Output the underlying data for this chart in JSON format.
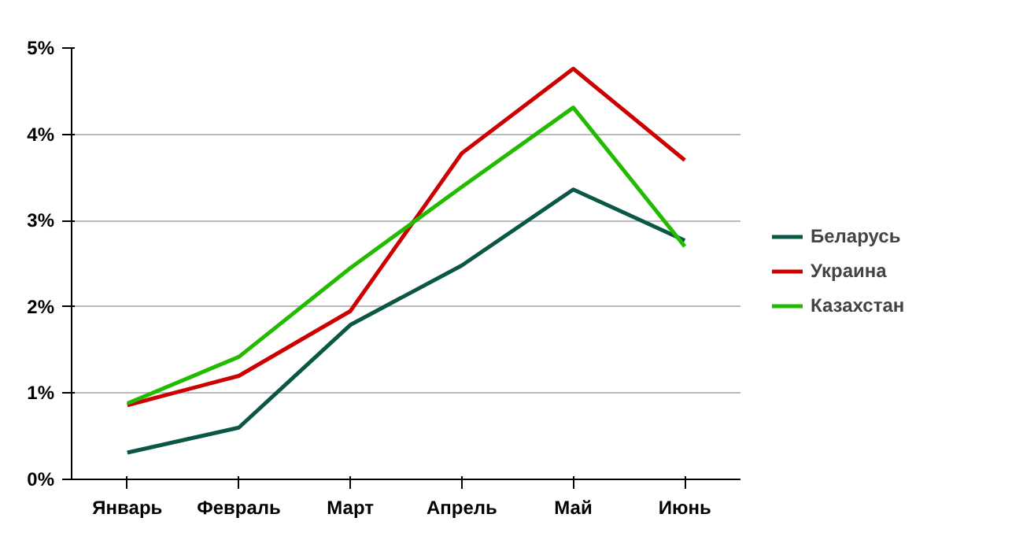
{
  "chart_data": {
    "type": "line",
    "categories": [
      "Январь",
      "Февраль",
      "Март",
      "Апрель",
      "Май",
      "Июнь"
    ],
    "series": [
      {
        "name": "Беларусь",
        "color": "#0b5745",
        "values": [
          0.31,
          0.6,
          1.79,
          2.48,
          3.36,
          2.77
        ]
      },
      {
        "name": "Украина",
        "color": "#cc0000",
        "values": [
          0.86,
          1.2,
          1.95,
          3.78,
          4.76,
          3.7
        ]
      },
      {
        "name": "Казахстан",
        "color": "#22bb00",
        "values": [
          0.88,
          1.42,
          2.45,
          3.39,
          4.31,
          2.7
        ]
      }
    ],
    "ylim": [
      0,
      5
    ],
    "yticks": [
      {
        "value": 0,
        "label": "0%"
      },
      {
        "value": 1,
        "label": "1%"
      },
      {
        "value": 2,
        "label": "2%"
      },
      {
        "value": 3,
        "label": "3%"
      },
      {
        "value": 4,
        "label": "4%"
      },
      {
        "value": 5,
        "label": "5%"
      }
    ],
    "grid": "y",
    "legend": "right",
    "marker": "none",
    "line_style": "solid"
  }
}
